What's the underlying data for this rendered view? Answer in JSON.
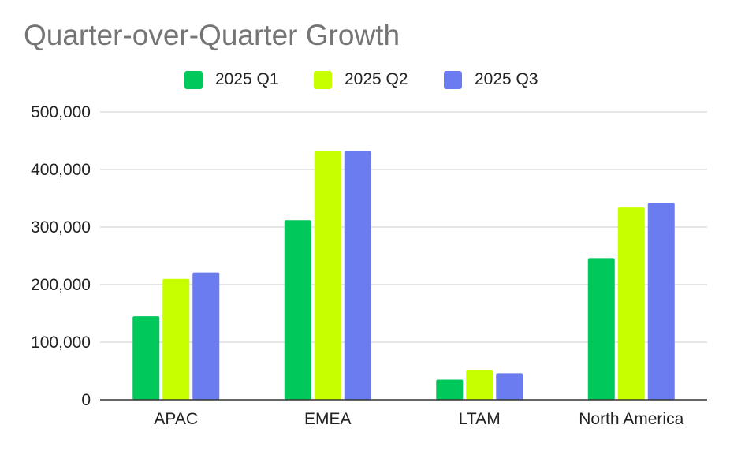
{
  "chart_data": {
    "type": "bar",
    "title": "Quarter-over-Quarter Growth",
    "categories": [
      "APAC",
      "EMEA",
      "LTAM",
      "North America"
    ],
    "series": [
      {
        "name": "2025 Q1",
        "color": "#00c85a",
        "values": [
          145000,
          312000,
          35000,
          246000
        ]
      },
      {
        "name": "2025 Q2",
        "color": "#c8ff00",
        "values": [
          210000,
          432000,
          52000,
          334000
        ]
      },
      {
        "name": "2025 Q3",
        "color": "#6b7cf0",
        "values": [
          221000,
          432000,
          46000,
          342000
        ]
      }
    ],
    "xlabel": "",
    "ylabel": "",
    "ylim": [
      0,
      500000
    ],
    "yticks": [
      0,
      100000,
      200000,
      300000,
      400000,
      500000
    ],
    "ytick_labels": [
      "0",
      "100,000",
      "200,000",
      "300,000",
      "400,000",
      "500,000"
    ],
    "grid": true,
    "legend_position": "top"
  }
}
